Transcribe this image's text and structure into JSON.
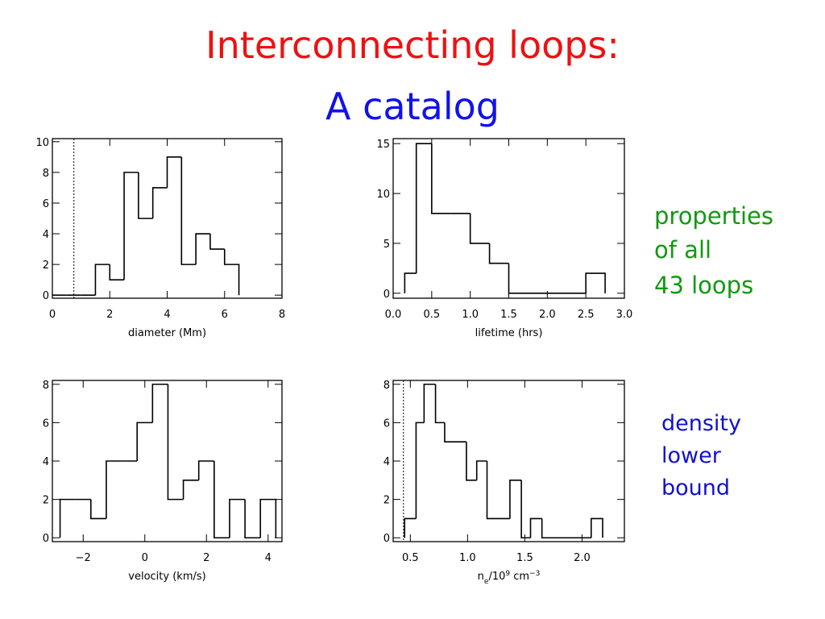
{
  "slide": {
    "title": [
      "Interconnecting loops:",
      "A catalog"
    ],
    "note_properties": [
      "properties",
      "of all",
      "43 loops"
    ],
    "note_density": [
      "density",
      "lower",
      "bound"
    ]
  },
  "chart_data": [
    {
      "type": "histogram",
      "xlabel": "diameter (Mm)",
      "bins": [
        0,
        0.5,
        1,
        1.5,
        2,
        2.5,
        3,
        3.5,
        4,
        4.5,
        5,
        5.5,
        6,
        6.5
      ],
      "values": [
        0,
        0,
        0,
        2,
        1,
        8,
        5,
        7,
        9,
        2,
        4,
        3,
        2
      ],
      "xlim": [
        0,
        8
      ],
      "xticks": [
        0,
        2,
        4,
        6,
        8
      ],
      "ylim": [
        -0.2,
        10.2
      ],
      "yticks": [
        0,
        2,
        4,
        6,
        8,
        10
      ],
      "vline": 0.75,
      "color": "#000000"
    },
    {
      "type": "histogram",
      "xlabel": "lifetime (hrs)",
      "bins": [
        0.15,
        0.3,
        0.5,
        0.75,
        1.0,
        1.25,
        1.5,
        2.5,
        2.75
      ],
      "values": [
        2,
        15,
        8,
        8,
        5,
        3,
        0,
        2
      ],
      "xlim": [
        0,
        3
      ],
      "xticks": [
        {
          "value": 0,
          "label": "0.0"
        },
        0.5,
        {
          "value": 1,
          "label": "1.0"
        },
        1.5,
        {
          "value": 2,
          "label": "2.0"
        },
        2.5,
        {
          "value": 3,
          "label": "3.0"
        }
      ],
      "ylim": [
        -0.5,
        15.5
      ],
      "yticks": [
        0,
        5,
        10,
        15
      ],
      "color": "#000000"
    },
    {
      "type": "histogram",
      "xlabel": "velocity (km/s)",
      "bins": [
        -2.75,
        -2.25,
        -1.75,
        -1.25,
        -0.75,
        -0.25,
        0.25,
        0.75,
        1.25,
        1.75,
        2.25,
        2.75,
        3.25,
        3.75,
        4.25
      ],
      "values": [
        2,
        2,
        1,
        4,
        4,
        6,
        8,
        2,
        3,
        4,
        0,
        2,
        0,
        2
      ],
      "xlim": [
        -3,
        4.45
      ],
      "xticks": [
        {
          "value": -2,
          "label": "−2"
        },
        0,
        2,
        4
      ],
      "ylim": [
        -0.2,
        8.2
      ],
      "yticks": [
        0,
        2,
        4,
        6,
        8
      ],
      "color": "#000000"
    },
    {
      "type": "histogram",
      "xlabel": [
        {
          "text": "n"
        },
        {
          "text": "e",
          "shift": "sub"
        },
        {
          "text": "/10"
        },
        {
          "text": "9",
          "shift": "super"
        },
        {
          "text": " cm"
        },
        {
          "text": "−3",
          "shift": "super"
        }
      ],
      "bins": [
        0.45,
        0.55,
        0.62,
        0.72,
        0.8,
        0.99,
        1.08,
        1.17,
        1.37,
        1.47,
        1.55,
        1.65,
        2.08,
        2.18
      ],
      "values": [
        1,
        6,
        8,
        6,
        5,
        3,
        4,
        1,
        3,
        0,
        1,
        0,
        1
      ],
      "xlim": [
        0.35,
        2.37
      ],
      "xticks": [
        0.5,
        {
          "value": 1,
          "label": "1.0"
        },
        1.5,
        {
          "value": 2,
          "label": "2.0"
        }
      ],
      "ylim": [
        -0.2,
        8.2
      ],
      "yticks": [
        0,
        2,
        4,
        6,
        8
      ],
      "vline": 0.44,
      "color": "#000000"
    }
  ]
}
